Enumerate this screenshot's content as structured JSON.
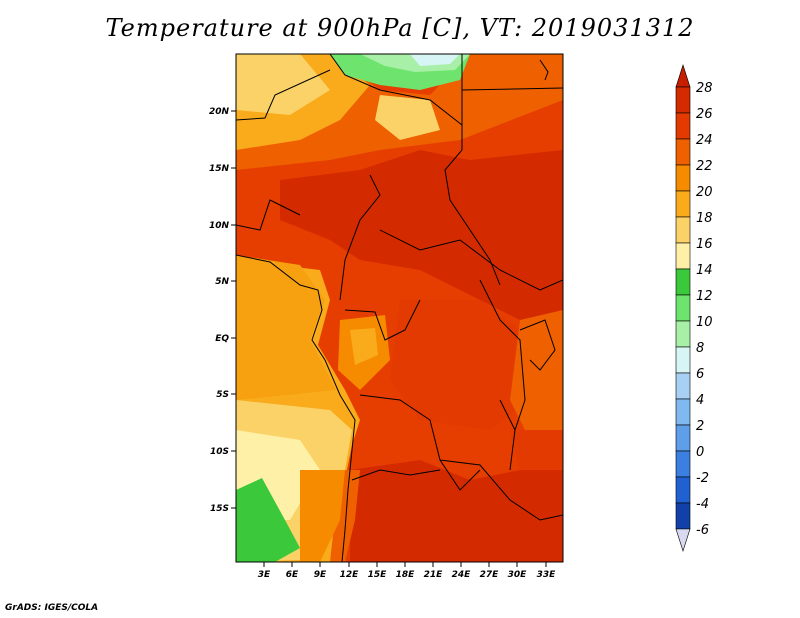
{
  "title": "Temperature at 900hPa [C], VT: 2019031312",
  "credit": "GrADS: IGES/COLA",
  "map": {
    "lon_range": [
      0,
      34
    ],
    "lat_range": [
      -20,
      24
    ],
    "lon_ticks": [
      "3E",
      "6E",
      "9E",
      "12E",
      "15E",
      "18E",
      "21E",
      "24E",
      "27E",
      "30E",
      "33E"
    ],
    "lat_ticks": [
      "20N",
      "15N",
      "10N",
      "5N",
      "EQ",
      "5S",
      "10S",
      "15S"
    ]
  },
  "colorbar": {
    "labels": [
      "28",
      "26",
      "24",
      "22",
      "20",
      "18",
      "16",
      "14",
      "12",
      "10",
      "8",
      "6",
      "4",
      "2",
      "0",
      "-2",
      "-4",
      "-6"
    ],
    "colors": [
      "#d42a00",
      "#e23a00",
      "#ee6000",
      "#f78b00",
      "#f9ab1c",
      "#fbd267",
      "#fff0a8",
      "#3bc83b",
      "#6ee46e",
      "#a8f0a8",
      "#d8f5f5",
      "#a8d0f5",
      "#80b8f0",
      "#5f9ee8",
      "#3b7fe0",
      "#2060d0",
      "#1040a8",
      "#0a1a80"
    ]
  }
}
